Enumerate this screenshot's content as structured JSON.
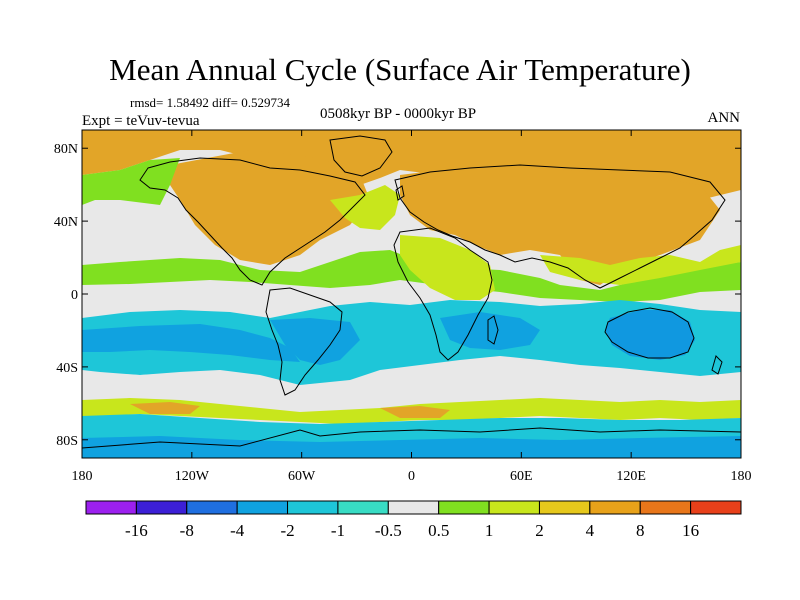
{
  "header": {
    "title": "Mean Annual Cycle (Surface Air Temperature)",
    "stats": "rmsd= 1.58492 diff= 0.529734",
    "experiment": "Expt = teVuv-tevua",
    "period": "0508kyr BP - 0000kyr BP",
    "season": "ANN"
  },
  "map": {
    "projection": "cylindrical-equidistant",
    "lon_range": [
      -180,
      180
    ],
    "lat_range": [
      -90,
      90
    ],
    "lat_ticks": [
      {
        "value": 80,
        "label": "80N"
      },
      {
        "value": 40,
        "label": "40N"
      },
      {
        "value": 0,
        "label": "0"
      },
      {
        "value": -40,
        "label": "40S"
      },
      {
        "value": -80,
        "label": "80S"
      }
    ],
    "lon_ticks": [
      {
        "value": -180,
        "label": "180"
      },
      {
        "value": -120,
        "label": "120W"
      },
      {
        "value": -60,
        "label": "60W"
      },
      {
        "value": 0,
        "label": "0"
      },
      {
        "value": 60,
        "label": "60E"
      },
      {
        "value": 120,
        "label": "120E"
      },
      {
        "value": 180,
        "label": "180"
      }
    ]
  },
  "colorbar": {
    "colors": [
      "#9c20ef",
      "#3c1fd6",
      "#1f6fe0",
      "#10a2e0",
      "#1ec6d8",
      "#38dcc4",
      "#e8e8e8",
      "#80e020",
      "#c8e61c",
      "#e6c81c",
      "#e8a21a",
      "#e8761a",
      "#e8401a"
    ],
    "labels": [
      "-16",
      "-8",
      "-4",
      "-2",
      "-1",
      "-0.5",
      "0.5",
      "1",
      "2",
      "4",
      "8",
      "16"
    ]
  },
  "field_colors": {
    "ocean_neutral": "#e8e8e8",
    "land_warm": "#e2a528",
    "land_mild": "#c8e61c",
    "lake_orange": "#f08a20",
    "cool_ocean": "#1ec6d8",
    "cooler_ocean": "#10a2e0",
    "australia_cool": "#1098e0",
    "green_band": "#80e020",
    "land_outline": "#000000"
  }
}
